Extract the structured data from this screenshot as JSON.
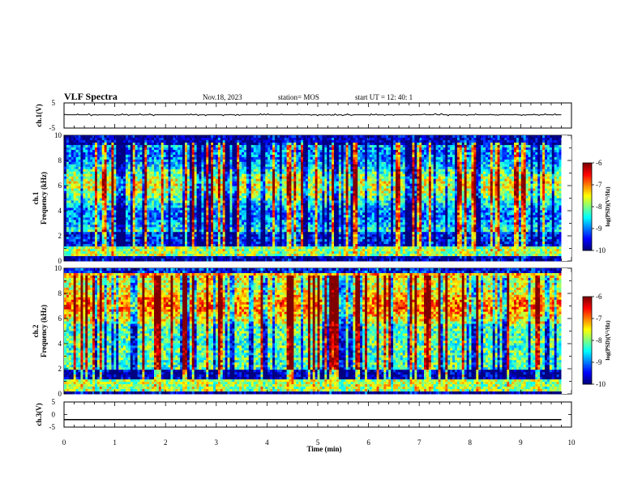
{
  "header": {
    "title": "VLF Spectra",
    "date": "Nov.18, 2023",
    "station": "station= MOS",
    "start": "start  UT =  12: 40: 1"
  },
  "chart_data": [
    {
      "type": "line",
      "name": "ch1-waveform",
      "ylabel": "ch.1(V)",
      "xlim": [
        0,
        10
      ],
      "ylim": [
        -5,
        5
      ],
      "y_ticks": [
        "5",
        "-5"
      ],
      "trace_level": 0.3,
      "trace_end": 9.8
    },
    {
      "type": "heatmap",
      "name": "ch1-spectrogram",
      "ylabel": "ch.1\nFrequency (kHz)",
      "xlabel": "Time (min)",
      "xlim": [
        0,
        10
      ],
      "ylim": [
        0,
        10
      ],
      "y_ticks": [
        "0",
        "2",
        "4",
        "6",
        "8",
        "10"
      ],
      "data_end": 9.8,
      "colorbar": {
        "label": "log(PSD)(V²/Hz)",
        "range": [
          -10,
          -6
        ],
        "ticks": [
          "-6",
          "-7",
          "-8",
          "-9",
          "-10"
        ]
      }
    },
    {
      "type": "heatmap",
      "name": "ch2-spectrogram",
      "ylabel": "ch.2\nFrequency (kHz)",
      "xlabel": "Time (min)",
      "xlim": [
        0,
        10
      ],
      "ylim": [
        0,
        10
      ],
      "y_ticks": [
        "0",
        "2",
        "4",
        "6",
        "8",
        "10"
      ],
      "data_end": 9.8,
      "colorbar": {
        "label": "log(PSD)(V²/Hz)",
        "range": [
          -10,
          -6
        ],
        "ticks": [
          "-6",
          "-7",
          "-8",
          "-9",
          "-10"
        ]
      }
    },
    {
      "type": "line",
      "name": "ch3-waveform",
      "ylabel": "ch.3(V)",
      "xlabel": "Time (min)",
      "xlim": [
        0,
        10
      ],
      "ylim": [
        -5,
        5
      ],
      "y_ticks": [
        "5",
        "0",
        "-5"
      ],
      "trace_level": -2,
      "trace_end": 9.8,
      "x_ticks": [
        "0",
        "1",
        "2",
        "3",
        "4",
        "5",
        "6",
        "7",
        "8",
        "9",
        "10"
      ]
    }
  ]
}
